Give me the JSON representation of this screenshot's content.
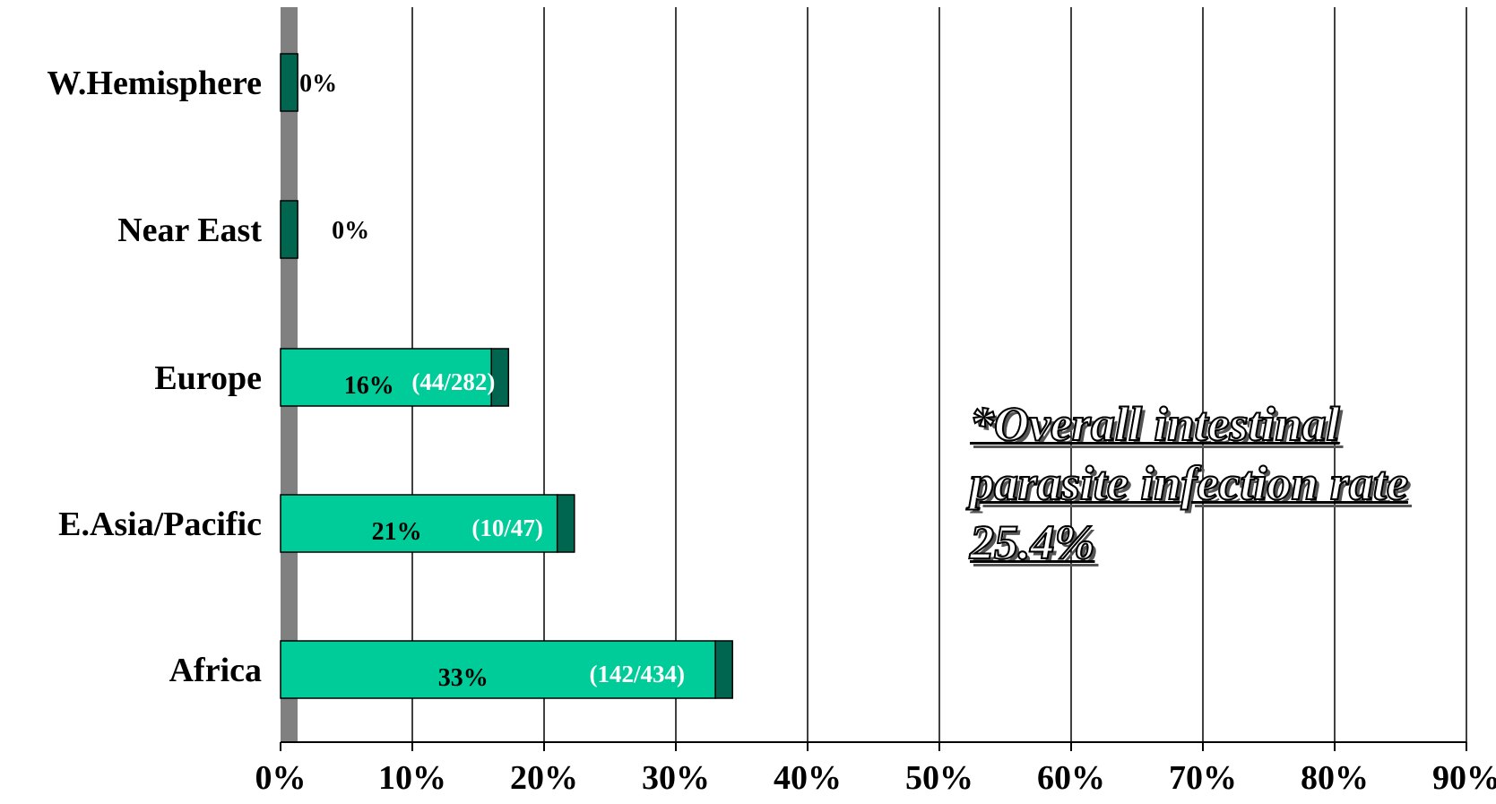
{
  "chart_data": {
    "type": "bar",
    "orientation": "horizontal",
    "stacked": true,
    "categories": [
      "W.Hemisphere",
      "Near East",
      "Europe",
      "E.Asia/Pacific",
      "Africa"
    ],
    "x": {
      "min": 0,
      "max": 90,
      "ticks": [
        "0%",
        "10%",
        "20%",
        "30%",
        "40%",
        "50%",
        "60%",
        "70%",
        "80%",
        "90%"
      ]
    },
    "grid": "vertical",
    "series": [
      {
        "values": [
          0,
          0,
          16,
          21,
          33
        ],
        "color": "#00CC99"
      },
      {
        "values": [
          1.3,
          1.3,
          1.3,
          1.3,
          1.3
        ],
        "color": "#006650"
      }
    ],
    "baseline_band_color": "#808080",
    "percent_labels": [
      "0%",
      "0%",
      "16%",
      "21%",
      "33%"
    ],
    "count_labels": [
      "",
      "",
      "(44/282)",
      "(10/47)",
      "(142/434)"
    ],
    "annotation": {
      "line1": "*Overall intestinal",
      "line2": "parasite infection rate",
      "line3": "25.4%"
    }
  }
}
